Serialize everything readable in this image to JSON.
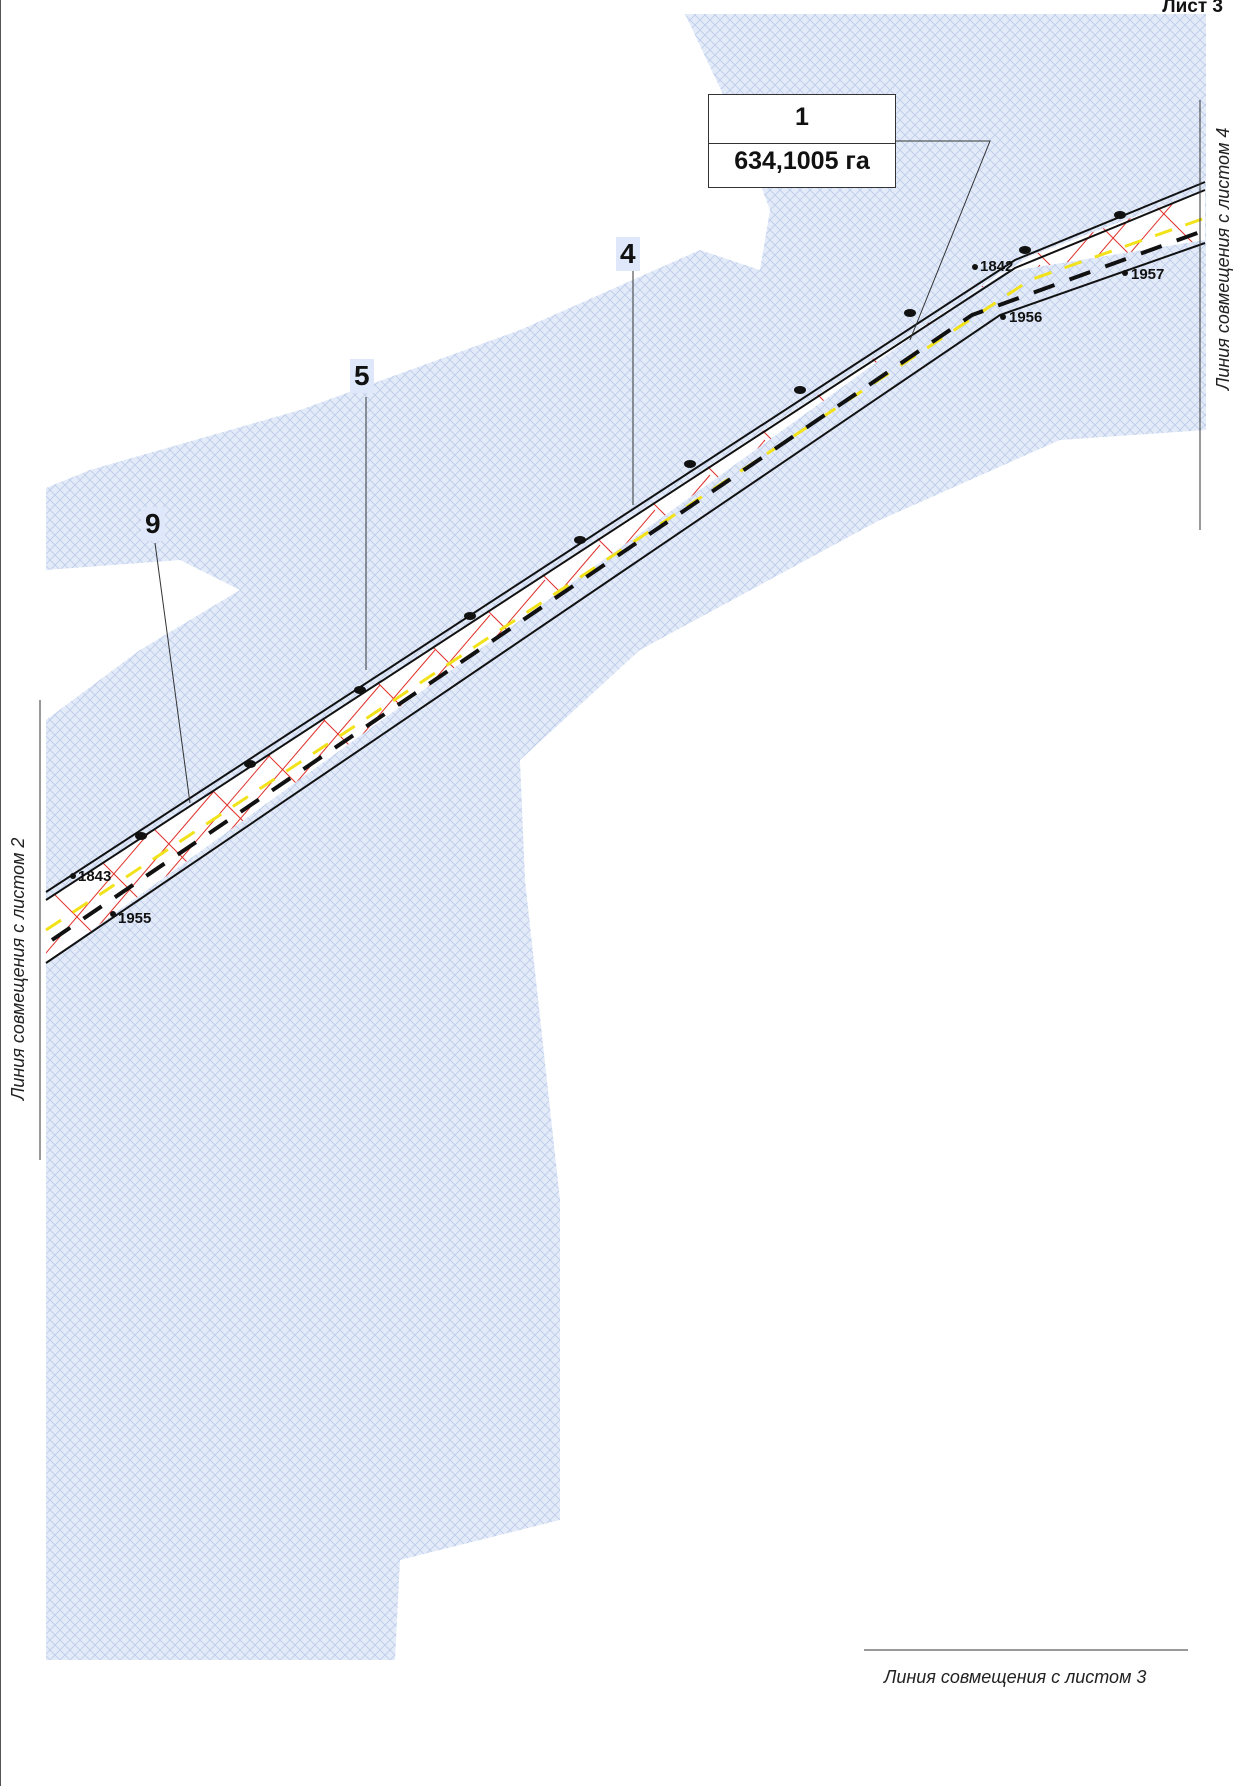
{
  "sheet": {
    "label": "Лист 3"
  },
  "parcel": {
    "number": "1",
    "area": "634,1005 га"
  },
  "line_labels": [
    {
      "id": "4",
      "text": "4"
    },
    {
      "id": "5",
      "text": "5"
    },
    {
      "id": "9",
      "text": "9"
    }
  ],
  "boundary_points": [
    "1842",
    "1843",
    "1955",
    "1956",
    "1957"
  ],
  "combination_lines": {
    "sheet2": "Линия совмещения с листом 2",
    "sheet3": "Линия совмещения с листом 3",
    "sheet4": "Линия совмещения с листом 4"
  },
  "colors": {
    "zone_fill": "#dbe5f8",
    "zone_hatch": "#b9c9ec",
    "red_hatch": "#e0302a",
    "yellow_axis": "#f2e21a",
    "line_black": "#111111"
  }
}
